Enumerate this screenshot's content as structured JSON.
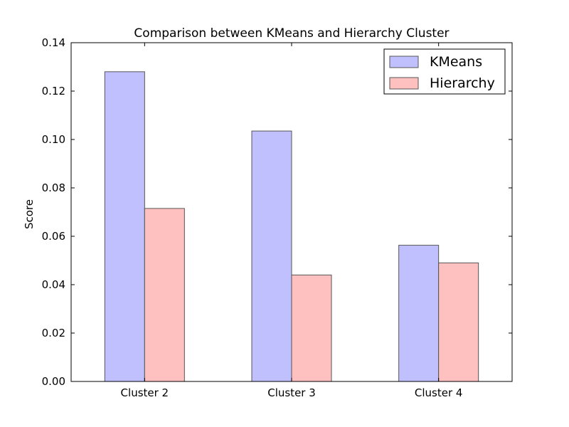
{
  "chart_data": {
    "type": "bar",
    "title": "Comparison between KMeans and Hierarchy Cluster",
    "xlabel": "",
    "ylabel": "Score",
    "categories": [
      "Cluster 2",
      "Cluster 3",
      "Cluster 4"
    ],
    "series": [
      {
        "name": "KMeans",
        "values": [
          0.128,
          0.1035,
          0.0563
        ],
        "color": "#c0c0ff"
      },
      {
        "name": "Hierarchy",
        "values": [
          0.0715,
          0.044,
          0.049
        ],
        "color": "#ffc0c0"
      }
    ],
    "ylim": [
      0,
      0.14
    ],
    "yticks": [
      "0.00",
      "0.02",
      "0.04",
      "0.06",
      "0.08",
      "0.10",
      "0.12",
      "0.14"
    ],
    "grid": false,
    "legend_position": "top-right"
  }
}
